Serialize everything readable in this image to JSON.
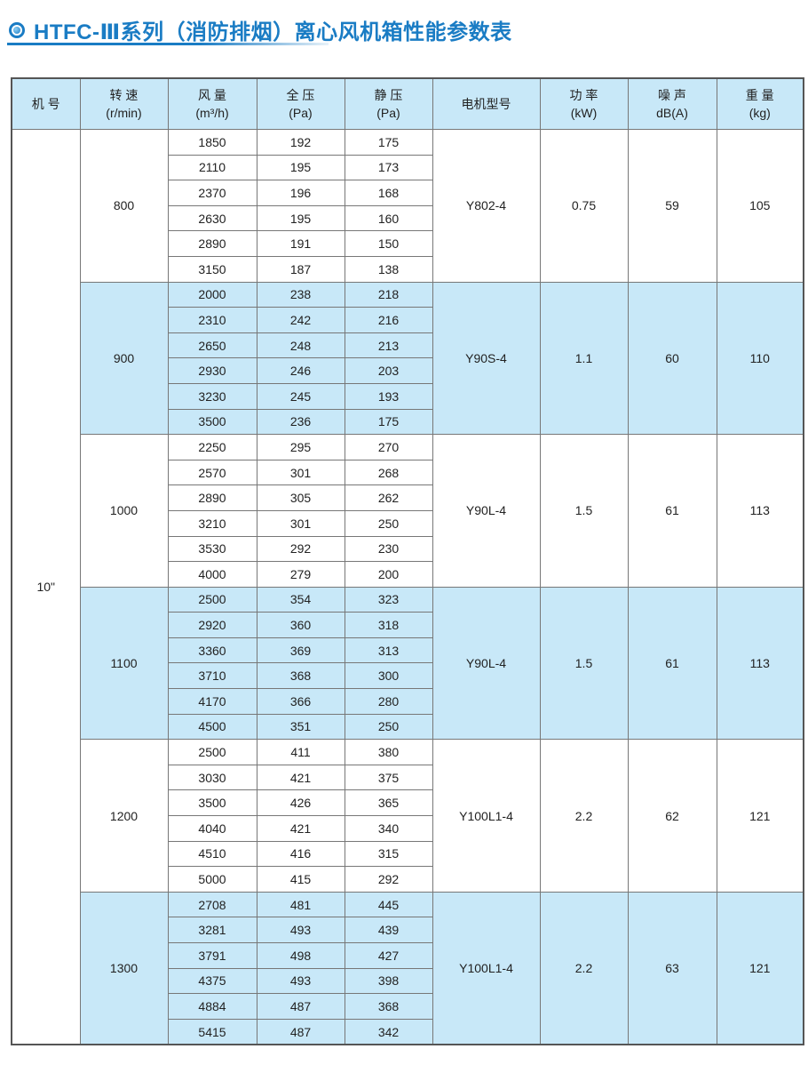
{
  "title": "HTFC-Ⅲ系列（消防排烟）离心风机箱性能参数表",
  "headers": [
    [
      "机 号",
      ""
    ],
    [
      "转 速",
      "(r/min)"
    ],
    [
      "风 量",
      "(m³/h)"
    ],
    [
      "全 压",
      "(Pa)"
    ],
    [
      "静 压",
      "(Pa)"
    ],
    [
      "电机型号",
      ""
    ],
    [
      "功 率",
      "(kW)"
    ],
    [
      "噪 声",
      "dB(A)"
    ],
    [
      "重 量",
      "(kg)"
    ]
  ],
  "machine_no": "10\"",
  "highlight_color": "#c8e8f8",
  "groups": [
    {
      "speed": "800",
      "motor": "Y802-4",
      "power": "0.75",
      "noise": "59",
      "weight": "105",
      "highlight": false,
      "rows": [
        [
          "1850",
          "192",
          "175"
        ],
        [
          "2110",
          "195",
          "173"
        ],
        [
          "2370",
          "196",
          "168"
        ],
        [
          "2630",
          "195",
          "160"
        ],
        [
          "2890",
          "191",
          "150"
        ],
        [
          "3150",
          "187",
          "138"
        ]
      ]
    },
    {
      "speed": "900",
      "motor": "Y90S-4",
      "power": "1.1",
      "noise": "60",
      "weight": "110",
      "highlight": true,
      "rows": [
        [
          "2000",
          "238",
          "218"
        ],
        [
          "2310",
          "242",
          "216"
        ],
        [
          "2650",
          "248",
          "213"
        ],
        [
          "2930",
          "246",
          "203"
        ],
        [
          "3230",
          "245",
          "193"
        ],
        [
          "3500",
          "236",
          "175"
        ]
      ]
    },
    {
      "speed": "1000",
      "motor": "Y90L-4",
      "power": "1.5",
      "noise": "61",
      "weight": "113",
      "highlight": false,
      "rows": [
        [
          "2250",
          "295",
          "270"
        ],
        [
          "2570",
          "301",
          "268"
        ],
        [
          "2890",
          "305",
          "262"
        ],
        [
          "3210",
          "301",
          "250"
        ],
        [
          "3530",
          "292",
          "230"
        ],
        [
          "4000",
          "279",
          "200"
        ]
      ]
    },
    {
      "speed": "1100",
      "motor": "Y90L-4",
      "power": "1.5",
      "noise": "61",
      "weight": "113",
      "highlight": true,
      "rows": [
        [
          "2500",
          "354",
          "323"
        ],
        [
          "2920",
          "360",
          "318"
        ],
        [
          "3360",
          "369",
          "313"
        ],
        [
          "3710",
          "368",
          "300"
        ],
        [
          "4170",
          "366",
          "280"
        ],
        [
          "4500",
          "351",
          "250"
        ]
      ]
    },
    {
      "speed": "1200",
      "motor": "Y100L1-4",
      "power": "2.2",
      "noise": "62",
      "weight": "121",
      "highlight": false,
      "rows": [
        [
          "2500",
          "411",
          "380"
        ],
        [
          "3030",
          "421",
          "375"
        ],
        [
          "3500",
          "426",
          "365"
        ],
        [
          "4040",
          "421",
          "340"
        ],
        [
          "4510",
          "416",
          "315"
        ],
        [
          "5000",
          "415",
          "292"
        ]
      ]
    },
    {
      "speed": "1300",
      "motor": "Y100L1-4",
      "power": "2.2",
      "noise": "63",
      "weight": "121",
      "highlight": true,
      "rows": [
        [
          "2708",
          "481",
          "445"
        ],
        [
          "3281",
          "493",
          "439"
        ],
        [
          "3791",
          "498",
          "427"
        ],
        [
          "4375",
          "493",
          "398"
        ],
        [
          "4884",
          "487",
          "368"
        ],
        [
          "5415",
          "487",
          "342"
        ]
      ]
    }
  ]
}
